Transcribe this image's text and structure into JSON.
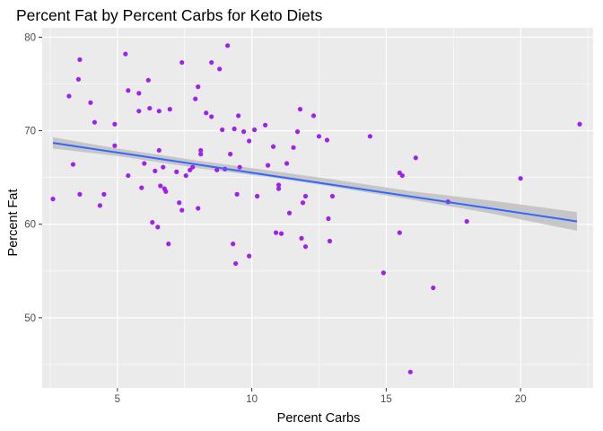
{
  "chart_data": {
    "type": "scatter",
    "title": "Percent Fat by Percent Carbs for Keto Diets",
    "xlabel": "Percent Carbs",
    "ylabel": "Percent Fat",
    "xlim": [
      2.2,
      22.7
    ],
    "ylim": [
      42.5,
      81.0
    ],
    "x_ticks": [
      5,
      10,
      15,
      20
    ],
    "y_ticks": [
      50,
      60,
      70,
      80
    ],
    "x_minor_ticks": [
      2.5,
      7.5,
      12.5,
      17.5,
      22.5
    ],
    "y_minor_ticks": [
      45,
      55,
      65,
      75
    ],
    "grid": true,
    "background": "#ebebeb",
    "point_color": "#a020f0",
    "trend_color": "#3366ff",
    "band_color": "#c0c0c0",
    "points": [
      [
        2.6,
        62.7
      ],
      [
        3.2,
        73.7
      ],
      [
        3.35,
        66.4
      ],
      [
        3.55,
        75.5
      ],
      [
        3.6,
        77.6
      ],
      [
        3.6,
        63.2
      ],
      [
        4.0,
        73.0
      ],
      [
        4.15,
        70.9
      ],
      [
        4.35,
        62.0
      ],
      [
        4.5,
        63.2
      ],
      [
        4.9,
        70.7
      ],
      [
        4.9,
        68.4
      ],
      [
        5.3,
        78.2
      ],
      [
        5.4,
        74.3
      ],
      [
        5.4,
        65.2
      ],
      [
        5.8,
        74.0
      ],
      [
        5.8,
        72.1
      ],
      [
        5.9,
        63.9
      ],
      [
        6.0,
        66.5
      ],
      [
        6.15,
        75.4
      ],
      [
        6.2,
        72.4
      ],
      [
        6.3,
        60.2
      ],
      [
        6.4,
        65.7
      ],
      [
        6.5,
        59.7
      ],
      [
        6.55,
        67.9
      ],
      [
        6.55,
        72.1
      ],
      [
        6.6,
        64.1
      ],
      [
        6.7,
        66.1
      ],
      [
        6.75,
        63.8
      ],
      [
        6.8,
        63.5
      ],
      [
        6.95,
        72.3
      ],
      [
        6.9,
        57.9
      ],
      [
        7.2,
        65.6
      ],
      [
        7.3,
        62.3
      ],
      [
        7.4,
        61.5
      ],
      [
        7.4,
        77.3
      ],
      [
        7.55,
        65.2
      ],
      [
        7.7,
        65.8
      ],
      [
        7.8,
        66.1
      ],
      [
        7.9,
        73.4
      ],
      [
        8.0,
        74.7
      ],
      [
        8.0,
        61.7
      ],
      [
        8.1,
        67.9
      ],
      [
        8.1,
        67.5
      ],
      [
        8.3,
        71.9
      ],
      [
        8.5,
        71.5
      ],
      [
        8.5,
        77.3
      ],
      [
        8.7,
        65.8
      ],
      [
        8.8,
        76.6
      ],
      [
        8.9,
        70.1
      ],
      [
        9.0,
        65.9
      ],
      [
        9.1,
        79.1
      ],
      [
        9.2,
        67.5
      ],
      [
        9.3,
        57.9
      ],
      [
        9.35,
        70.2
      ],
      [
        9.4,
        55.8
      ],
      [
        9.45,
        63.2
      ],
      [
        9.5,
        71.6
      ],
      [
        9.55,
        66.1
      ],
      [
        9.7,
        69.9
      ],
      [
        9.9,
        56.6
      ],
      [
        9.9,
        68.9
      ],
      [
        10.1,
        70.1
      ],
      [
        10.2,
        63.0
      ],
      [
        10.5,
        70.6
      ],
      [
        10.6,
        66.3
      ],
      [
        10.8,
        68.3
      ],
      [
        10.9,
        59.1
      ],
      [
        11.0,
        64.2
      ],
      [
        11.0,
        63.8
      ],
      [
        11.1,
        59.0
      ],
      [
        11.3,
        66.5
      ],
      [
        11.4,
        61.2
      ],
      [
        11.55,
        68.2
      ],
      [
        11.7,
        69.9
      ],
      [
        11.8,
        72.3
      ],
      [
        11.85,
        58.5
      ],
      [
        11.9,
        62.3
      ],
      [
        12.0,
        57.6
      ],
      [
        12.0,
        63.0
      ],
      [
        12.3,
        71.6
      ],
      [
        12.5,
        69.4
      ],
      [
        12.8,
        69.0
      ],
      [
        12.85,
        60.6
      ],
      [
        12.9,
        58.2
      ],
      [
        13.0,
        63.0
      ],
      [
        14.4,
        69.4
      ],
      [
        14.9,
        54.8
      ],
      [
        15.5,
        59.1
      ],
      [
        15.5,
        65.5
      ],
      [
        15.6,
        65.2
      ],
      [
        15.9,
        44.2
      ],
      [
        16.1,
        67.1
      ],
      [
        16.75,
        53.2
      ],
      [
        17.3,
        62.4
      ],
      [
        18.0,
        60.3
      ],
      [
        20.0,
        64.9
      ],
      [
        22.2,
        70.7
      ]
    ],
    "trend_line": {
      "x": [
        2.6,
        22.1
      ],
      "y": [
        68.7,
        60.3
      ]
    },
    "confidence_band": {
      "x": [
        2.6,
        5,
        8,
        11,
        13,
        16,
        19,
        22.1
      ],
      "lower": [
        68.1,
        67.3,
        66.0,
        64.9,
        64.0,
        62.6,
        61.1,
        59.3
      ],
      "upper": [
        69.3,
        68.1,
        66.8,
        65.6,
        64.8,
        63.5,
        62.5,
        61.3
      ]
    }
  }
}
